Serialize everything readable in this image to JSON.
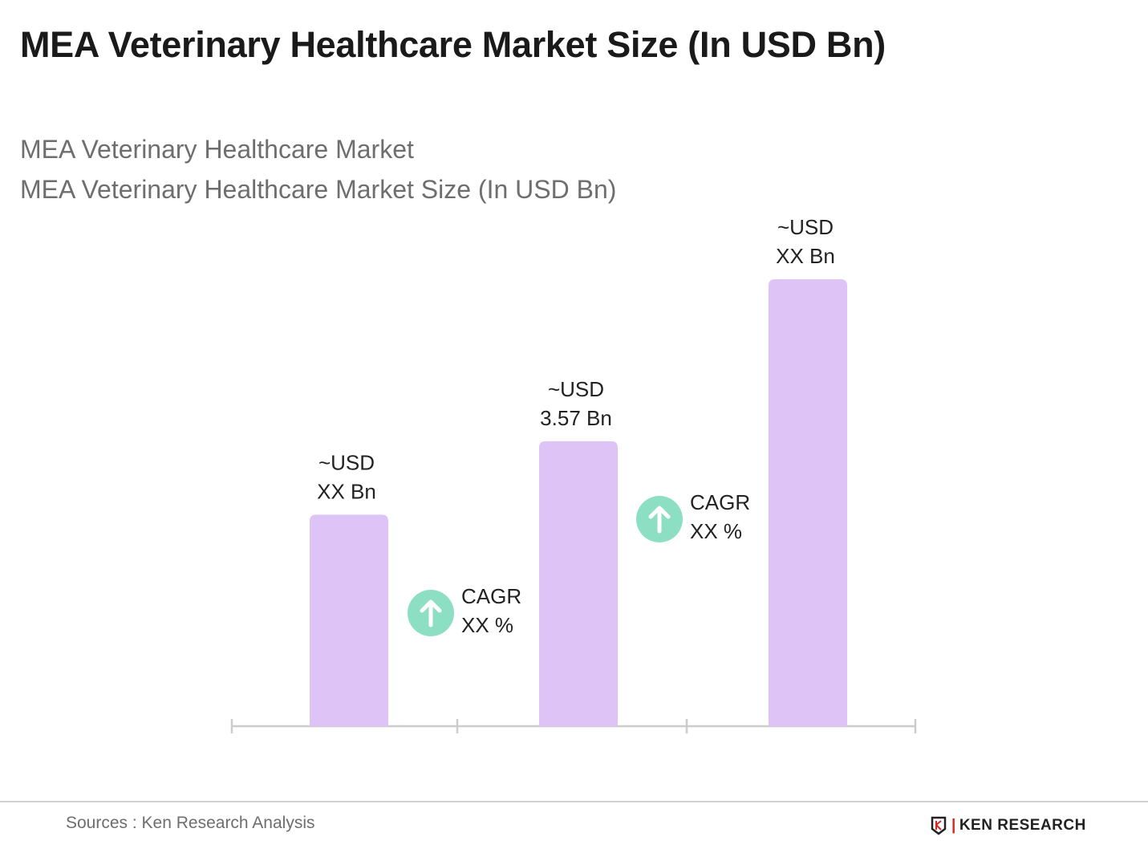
{
  "title": "MEA Veterinary Healthcare Market Size (In USD Bn)",
  "subtitle1": "MEA Veterinary Healthcare Market",
  "subtitle2": "MEA Veterinary Healthcare Market Size (In USD Bn)",
  "chart_data": {
    "type": "bar",
    "categories": [
      "",
      "",
      ""
    ],
    "values": [
      2.65,
      3.57,
      5.6
    ],
    "data_labels": [
      [
        "~USD",
        "XX Bn"
      ],
      [
        "~USD",
        "3.57 Bn"
      ],
      [
        "~USD",
        "XX Bn"
      ]
    ],
    "annotations": [
      [
        "CAGR",
        "XX %"
      ],
      [
        "CAGR",
        "XX %"
      ]
    ],
    "xlabel": "",
    "ylabel": "",
    "grid": false,
    "colors": {
      "bar": "#dec3f6",
      "cagr_circle": "#8ddfc4",
      "axis": "#cccccc"
    }
  },
  "footer": {
    "sources": "Sources : Ken Research Analysis",
    "logo_text": "KEN RESEARCH"
  }
}
